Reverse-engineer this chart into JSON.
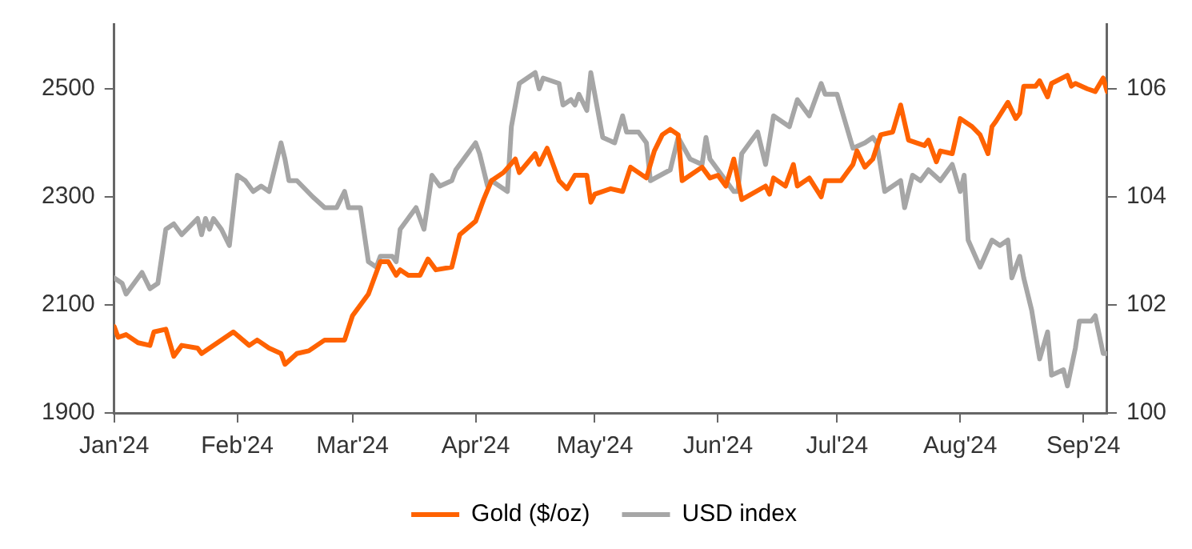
{
  "chart_data": {
    "type": "line",
    "x": [
      "2024-01-01",
      "2024-01-02",
      "2024-01-04",
      "2024-01-07",
      "2024-01-10",
      "2024-01-11",
      "2024-01-14",
      "2024-01-16",
      "2024-01-18",
      "2024-01-22",
      "2024-01-23",
      "2024-01-29",
      "2024-01-31",
      "2024-02-04",
      "2024-02-06",
      "2024-02-09",
      "2024-02-12",
      "2024-02-13",
      "2024-02-16",
      "2024-02-19",
      "2024-02-23",
      "2024-02-28",
      "2024-03-01",
      "2024-03-05",
      "2024-03-08",
      "2024-03-10",
      "2024-03-12",
      "2024-03-13",
      "2024-03-15",
      "2024-03-18",
      "2024-03-20",
      "2024-03-22",
      "2024-03-26",
      "2024-03-28",
      "2024-04-01",
      "2024-04-03",
      "2024-04-05",
      "2024-04-08",
      "2024-04-11",
      "2024-04-12",
      "2024-04-16",
      "2024-04-17",
      "2024-04-19",
      "2024-04-22",
      "2024-04-24",
      "2024-04-26",
      "2024-04-29",
      "2024-04-30",
      "2024-05-01",
      "2024-05-05",
      "2024-05-08",
      "2024-05-10",
      "2024-05-14",
      "2024-05-16",
      "2024-05-18",
      "2024-05-20",
      "2024-05-22",
      "2024-05-23",
      "2024-05-28",
      "2024-05-30",
      "2024-06-01",
      "2024-06-03",
      "2024-06-05",
      "2024-06-07",
      "2024-06-13",
      "2024-06-14",
      "2024-06-15",
      "2024-06-18",
      "2024-06-20",
      "2024-06-21",
      "2024-06-24",
      "2024-06-27",
      "2024-06-28",
      "2024-07-02",
      "2024-07-05",
      "2024-07-06",
      "2024-07-08",
      "2024-07-10",
      "2024-07-12",
      "2024-07-15",
      "2024-07-17",
      "2024-07-19",
      "2024-07-23",
      "2024-07-24",
      "2024-07-26",
      "2024-07-27",
      "2024-07-30",
      "2024-08-01",
      "2024-08-04",
      "2024-08-06",
      "2024-08-08",
      "2024-08-09",
      "2024-08-10",
      "2024-08-13",
      "2024-08-15",
      "2024-08-16",
      "2024-08-17",
      "2024-08-20",
      "2024-08-21",
      "2024-08-23",
      "2024-08-24",
      "2024-08-28",
      "2024-08-29",
      "2024-08-30",
      "2024-09-02",
      "2024-09-04",
      "2024-09-06",
      "2024-09-07"
    ],
    "series": [
      {
        "name": "Gold ($/oz)",
        "color": "#ff6200",
        "values": [
          2060,
          2040,
          2045,
          2030,
          2025,
          2050,
          2055,
          2005,
          2025,
          2020,
          2010,
          2040,
          2050,
          2025,
          2035,
          2020,
          2010,
          1990,
          2010,
          2015,
          2035,
          2035,
          2080,
          2120,
          2180,
          2180,
          2155,
          2165,
          2155,
          2155,
          2185,
          2165,
          2170,
          2230,
          2255,
          2295,
          2330,
          2345,
          2370,
          2345,
          2380,
          2360,
          2390,
          2330,
          2315,
          2340,
          2340,
          2290,
          2305,
          2315,
          2310,
          2355,
          2335,
          2385,
          2415,
          2425,
          2415,
          2330,
          2355,
          2335,
          2340,
          2320,
          2370,
          2295,
          2320,
          2305,
          2335,
          2320,
          2360,
          2320,
          2335,
          2300,
          2330,
          2330,
          2360,
          2385,
          2355,
          2370,
          2415,
          2420,
          2470,
          2405,
          2395,
          2405,
          2365,
          2385,
          2380,
          2445,
          2430,
          2415,
          2380,
          2430,
          2440,
          2475,
          2445,
          2455,
          2505,
          2505,
          2515,
          2485,
          2510,
          2525,
          2505,
          2510,
          2500,
          2495,
          2520,
          2495
        ]
      },
      {
        "name": "USD index",
        "color": "#a6a6a6",
        "axis": "y2",
        "x": [
          "2024-01-01",
          "2024-01-03",
          "2024-01-04",
          "2024-01-08",
          "2024-01-10",
          "2024-01-12",
          "2024-01-14",
          "2024-01-16",
          "2024-01-18",
          "2024-01-22",
          "2024-01-23",
          "2024-01-24",
          "2024-01-25",
          "2024-01-26",
          "2024-01-28",
          "2024-01-30",
          "2024-02-01",
          "2024-02-03",
          "2024-02-05",
          "2024-02-07",
          "2024-02-09",
          "2024-02-12",
          "2024-02-13",
          "2024-02-14",
          "2024-02-16",
          "2024-02-20",
          "2024-02-23",
          "2024-02-26",
          "2024-02-28",
          "2024-02-29",
          "2024-03-03",
          "2024-03-05",
          "2024-03-07",
          "2024-03-08",
          "2024-03-11",
          "2024-03-12",
          "2024-03-13",
          "2024-03-15",
          "2024-03-17",
          "2024-03-19",
          "2024-03-21",
          "2024-03-23",
          "2024-03-26",
          "2024-03-27",
          "2024-04-01",
          "2024-04-02",
          "2024-04-04",
          "2024-04-05",
          "2024-04-09",
          "2024-04-10",
          "2024-04-12",
          "2024-04-16",
          "2024-04-17",
          "2024-04-18",
          "2024-04-22",
          "2024-04-23",
          "2024-04-25",
          "2024-04-26",
          "2024-04-27",
          "2024-04-29",
          "2024-04-30",
          "2024-05-03",
          "2024-05-06",
          "2024-05-08",
          "2024-05-09",
          "2024-05-12",
          "2024-05-14",
          "2024-05-15",
          "2024-05-20",
          "2024-05-22",
          "2024-05-25",
          "2024-05-28",
          "2024-05-29",
          "2024-05-30",
          "2024-06-03",
          "2024-06-05",
          "2024-06-06",
          "2024-06-07",
          "2024-06-11",
          "2024-06-13",
          "2024-06-15",
          "2024-06-19",
          "2024-06-21",
          "2024-06-24",
          "2024-06-27",
          "2024-06-28",
          "2024-07-01",
          "2024-07-05",
          "2024-07-08",
          "2024-07-10",
          "2024-07-11",
          "2024-07-13",
          "2024-07-17",
          "2024-07-18",
          "2024-07-20",
          "2024-07-22",
          "2024-07-24",
          "2024-07-27",
          "2024-07-30",
          "2024-08-01",
          "2024-08-02",
          "2024-08-03",
          "2024-08-06",
          "2024-08-09",
          "2024-08-11",
          "2024-08-13",
          "2024-08-14",
          "2024-08-16",
          "2024-08-17",
          "2024-08-19",
          "2024-08-21",
          "2024-08-23",
          "2024-08-24",
          "2024-08-27",
          "2024-08-28",
          "2024-08-30",
          "2024-08-31",
          "2024-09-03",
          "2024-09-04",
          "2024-09-06",
          "2024-09-07"
        ],
        "values": [
          102.5,
          102.4,
          102.2,
          102.6,
          102.3,
          102.4,
          103.4,
          103.5,
          103.3,
          103.6,
          103.3,
          103.6,
          103.4,
          103.6,
          103.4,
          103.1,
          104.4,
          104.3,
          104.1,
          104.2,
          104.1,
          105.0,
          104.7,
          104.3,
          104.3,
          104.0,
          103.8,
          103.8,
          104.1,
          103.8,
          103.8,
          102.8,
          102.7,
          102.9,
          102.9,
          102.8,
          103.4,
          103.6,
          103.8,
          103.4,
          104.4,
          104.2,
          104.3,
          104.5,
          105.0,
          104.8,
          104.2,
          104.3,
          104.1,
          105.3,
          106.1,
          106.3,
          106.0,
          106.2,
          106.1,
          105.7,
          105.8,
          105.7,
          105.9,
          105.6,
          106.3,
          105.1,
          105.0,
          105.5,
          105.2,
          105.2,
          105.0,
          104.3,
          104.5,
          105.1,
          104.7,
          104.6,
          105.1,
          104.7,
          104.3,
          104.1,
          104.1,
          104.8,
          105.2,
          104.6,
          105.5,
          105.3,
          105.8,
          105.5,
          106.1,
          105.9,
          105.9,
          104.9,
          105.0,
          105.1,
          105.0,
          104.1,
          104.3,
          103.8,
          104.4,
          104.3,
          104.5,
          104.3,
          104.6,
          104.1,
          104.4,
          103.2,
          102.7,
          103.2,
          103.1,
          103.2,
          102.5,
          102.9,
          102.5,
          101.9,
          101.0,
          101.5,
          100.7,
          100.8,
          100.5,
          101.2,
          101.7,
          101.7,
          101.8,
          101.1,
          101.1
        ]
      }
    ],
    "xlim": [
      "2024-01-01",
      "2024-09-07"
    ],
    "xticks": [
      {
        "value": "2024-01-01",
        "label": "Jan'24"
      },
      {
        "value": "2024-02-01",
        "label": "Feb'24"
      },
      {
        "value": "2024-03-01",
        "label": "Mar'24"
      },
      {
        "value": "2024-04-01",
        "label": "Apr'24"
      },
      {
        "value": "2024-05-01",
        "label": "May'24"
      },
      {
        "value": "2024-06-01",
        "label": "Jun'24"
      },
      {
        "value": "2024-07-01",
        "label": "Jul'24"
      },
      {
        "value": "2024-08-01",
        "label": "Aug'24"
      },
      {
        "value": "2024-09-01",
        "label": "Sep'24"
      }
    ],
    "ylim": [
      1900,
      2620
    ],
    "yticks": [
      1900,
      2100,
      2300,
      2500
    ],
    "y2lim": [
      100,
      107.2
    ],
    "y2ticks": [
      100,
      102,
      104,
      106
    ],
    "legend": "bottom",
    "marker": "none",
    "line_style": "solid"
  }
}
